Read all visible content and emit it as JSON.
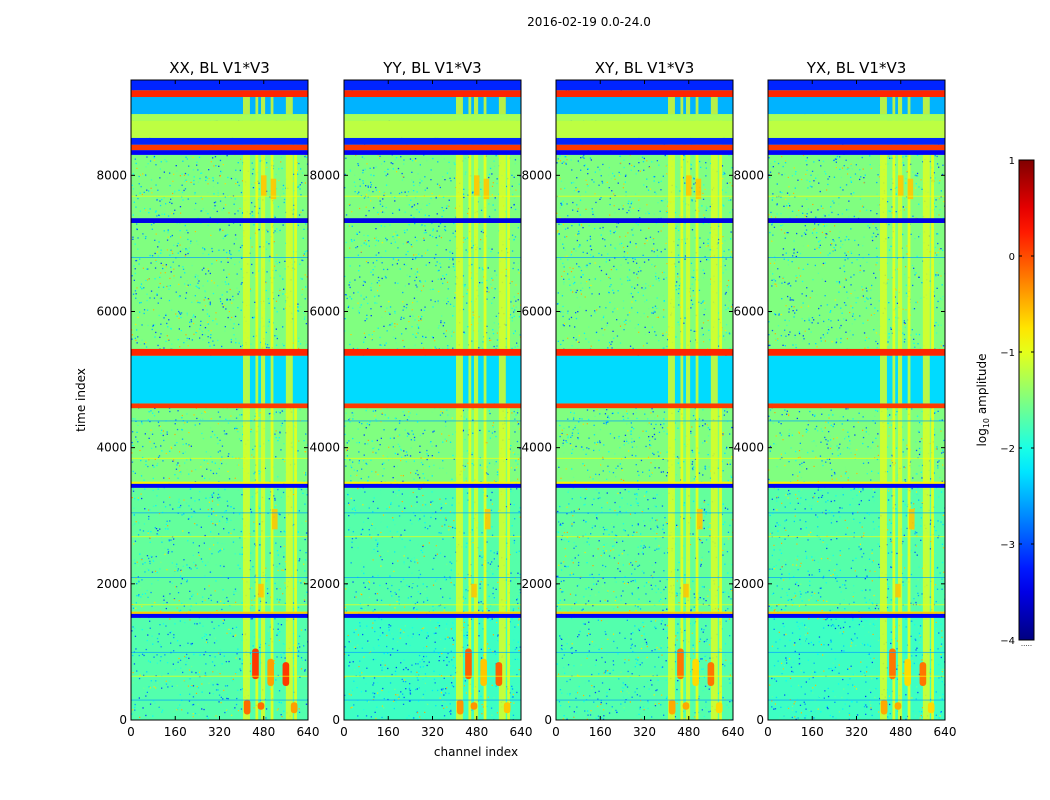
{
  "chart_data": {
    "type": "heatmap",
    "suptitle": "2016-02-19 0.0-24.0",
    "xlabel": "channel index",
    "ylabel": "time index",
    "xlim": [
      0,
      640
    ],
    "ylim": [
      0,
      9400
    ],
    "xticks": [
      0,
      160,
      320,
      480,
      640
    ],
    "yticks": [
      0,
      2000,
      4000,
      6000,
      8000
    ],
    "panels": [
      {
        "title": "XX, BL V1*V3",
        "lowband_level": -1.9,
        "hotspot_level": 0.1
      },
      {
        "title": "YY, BL V1*V3",
        "lowband_level": -2.1,
        "hotspot_level": -0.1
      },
      {
        "title": "XY, BL V1*V3",
        "lowband_level": -1.9,
        "hotspot_level": -0.2
      },
      {
        "title": "YX, BL V1*V3",
        "lowband_level": -2.1,
        "hotspot_level": -0.2
      }
    ],
    "rfi_channel_bands": [
      [
        405,
        430
      ],
      [
        450,
        460
      ],
      [
        470,
        485
      ],
      [
        505,
        515
      ],
      [
        560,
        585
      ],
      [
        590,
        600
      ]
    ],
    "horizontal_bands": [
      {
        "t0": 1500,
        "t1": 1560,
        "level": -3.4
      },
      {
        "t0": 1560,
        "t1": 1590,
        "level": -0.6
      },
      {
        "t0": 3410,
        "t1": 3470,
        "level": -3.4
      },
      {
        "t0": 3470,
        "t1": 3500,
        "level": -0.8
      },
      {
        "t0": 4580,
        "t1": 4650,
        "level": 0.1
      },
      {
        "t0": 4650,
        "t1": 5350,
        "level": -2.3
      },
      {
        "t0": 5350,
        "t1": 5450,
        "level": 0.2
      },
      {
        "t0": 7300,
        "t1": 7370,
        "level": -3.5
      },
      {
        "t0": 8300,
        "t1": 8370,
        "level": -3.4
      },
      {
        "t0": 8370,
        "t1": 8450,
        "level": 0.1
      },
      {
        "t0": 8450,
        "t1": 8550,
        "level": -3.2
      },
      {
        "t0": 8550,
        "t1": 8800,
        "level": -1.2
      },
      {
        "t0": 8800,
        "t1": 8900,
        "level": -1.3
      },
      {
        "t0": 8900,
        "t1": 9150,
        "level": -2.5
      },
      {
        "t0": 9150,
        "t1": 9250,
        "level": 0.2
      },
      {
        "t0": 9250,
        "t1": 9400,
        "level": -3.2
      }
    ],
    "background_level": -1.5,
    "colorbar": {
      "label_prefix": "log",
      "label_sub": "10",
      "label_suffix": " amplitude",
      "min": -4,
      "max": 1,
      "ticks": [
        1,
        0,
        -1,
        -2,
        -3,
        -4
      ],
      "tick_labels": [
        "1",
        "0",
        "−1",
        "−2",
        "−3",
        "−4"
      ],
      "footer": "....."
    }
  }
}
